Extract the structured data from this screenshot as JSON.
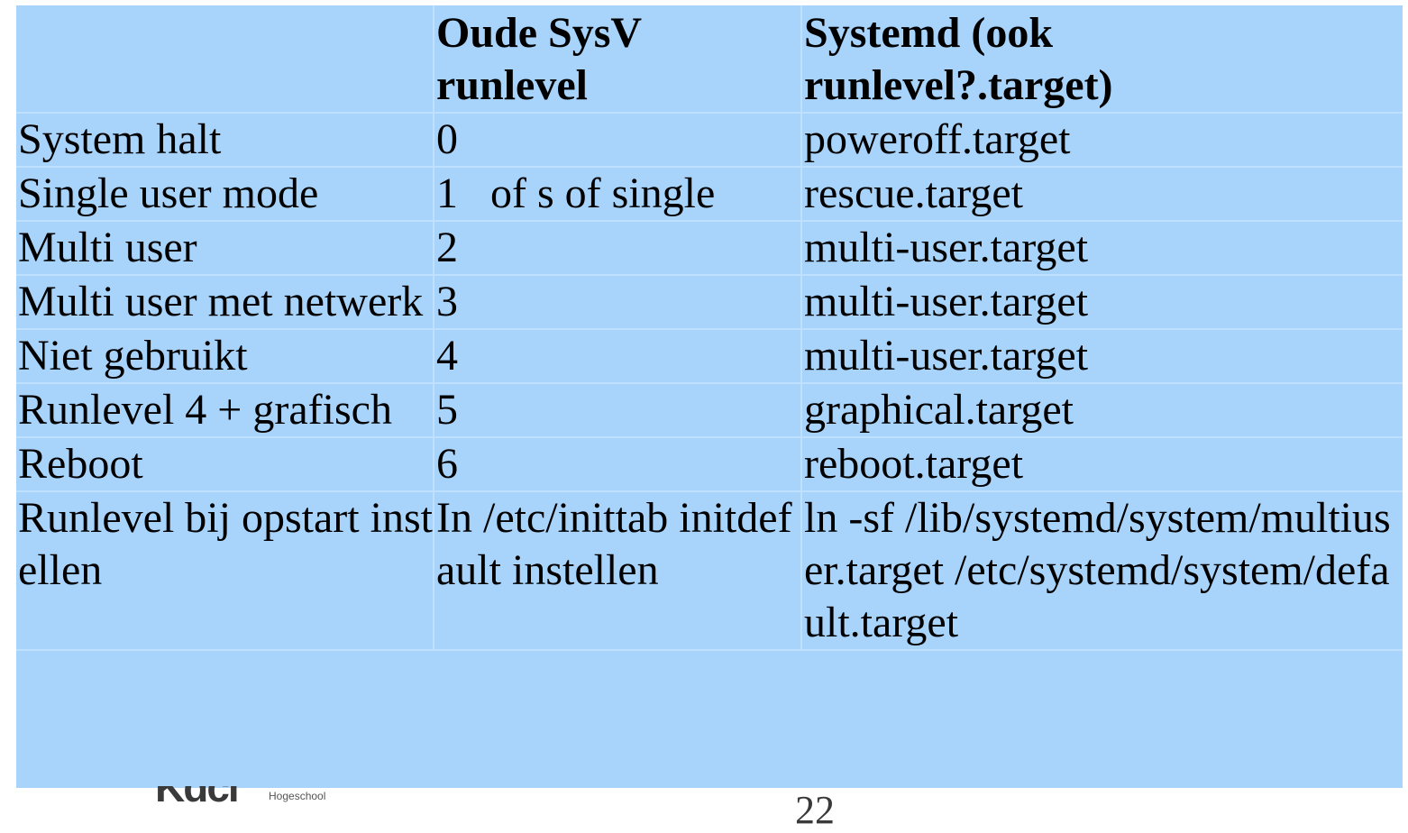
{
  "table": {
    "headers": [
      "",
      "Oude SysV\nrunlevel",
      "Systemd (ook\nrunlevel?.target)"
    ],
    "rows": [
      [
        "System halt",
        "0",
        "poweroff.target"
      ],
      [
        "Single user mode",
        "1   of s of single",
        "rescue.target"
      ],
      [
        "Multi user",
        "2",
        "multi-user.target"
      ],
      [
        "Multi user met netwerk",
        "3",
        "multi-user.target"
      ],
      [
        "Niet gebruikt",
        "4",
        "multi-user.target"
      ],
      [
        "Runlevel 4 + grafisch",
        "5",
        "graphical.target"
      ],
      [
        "Reboot",
        "6",
        "reboot.target"
      ],
      [
        "Runlevel bij opstart instellen",
        "In /etc/inittab initdefault instellen",
        "ln -sf /lib/systemd/system/multiuser.target /etc/systemd/system/default.target"
      ]
    ]
  },
  "footer": {
    "logo_text": "Kdci",
    "logo_subtext": "Hogeschool",
    "page_number": "22"
  }
}
